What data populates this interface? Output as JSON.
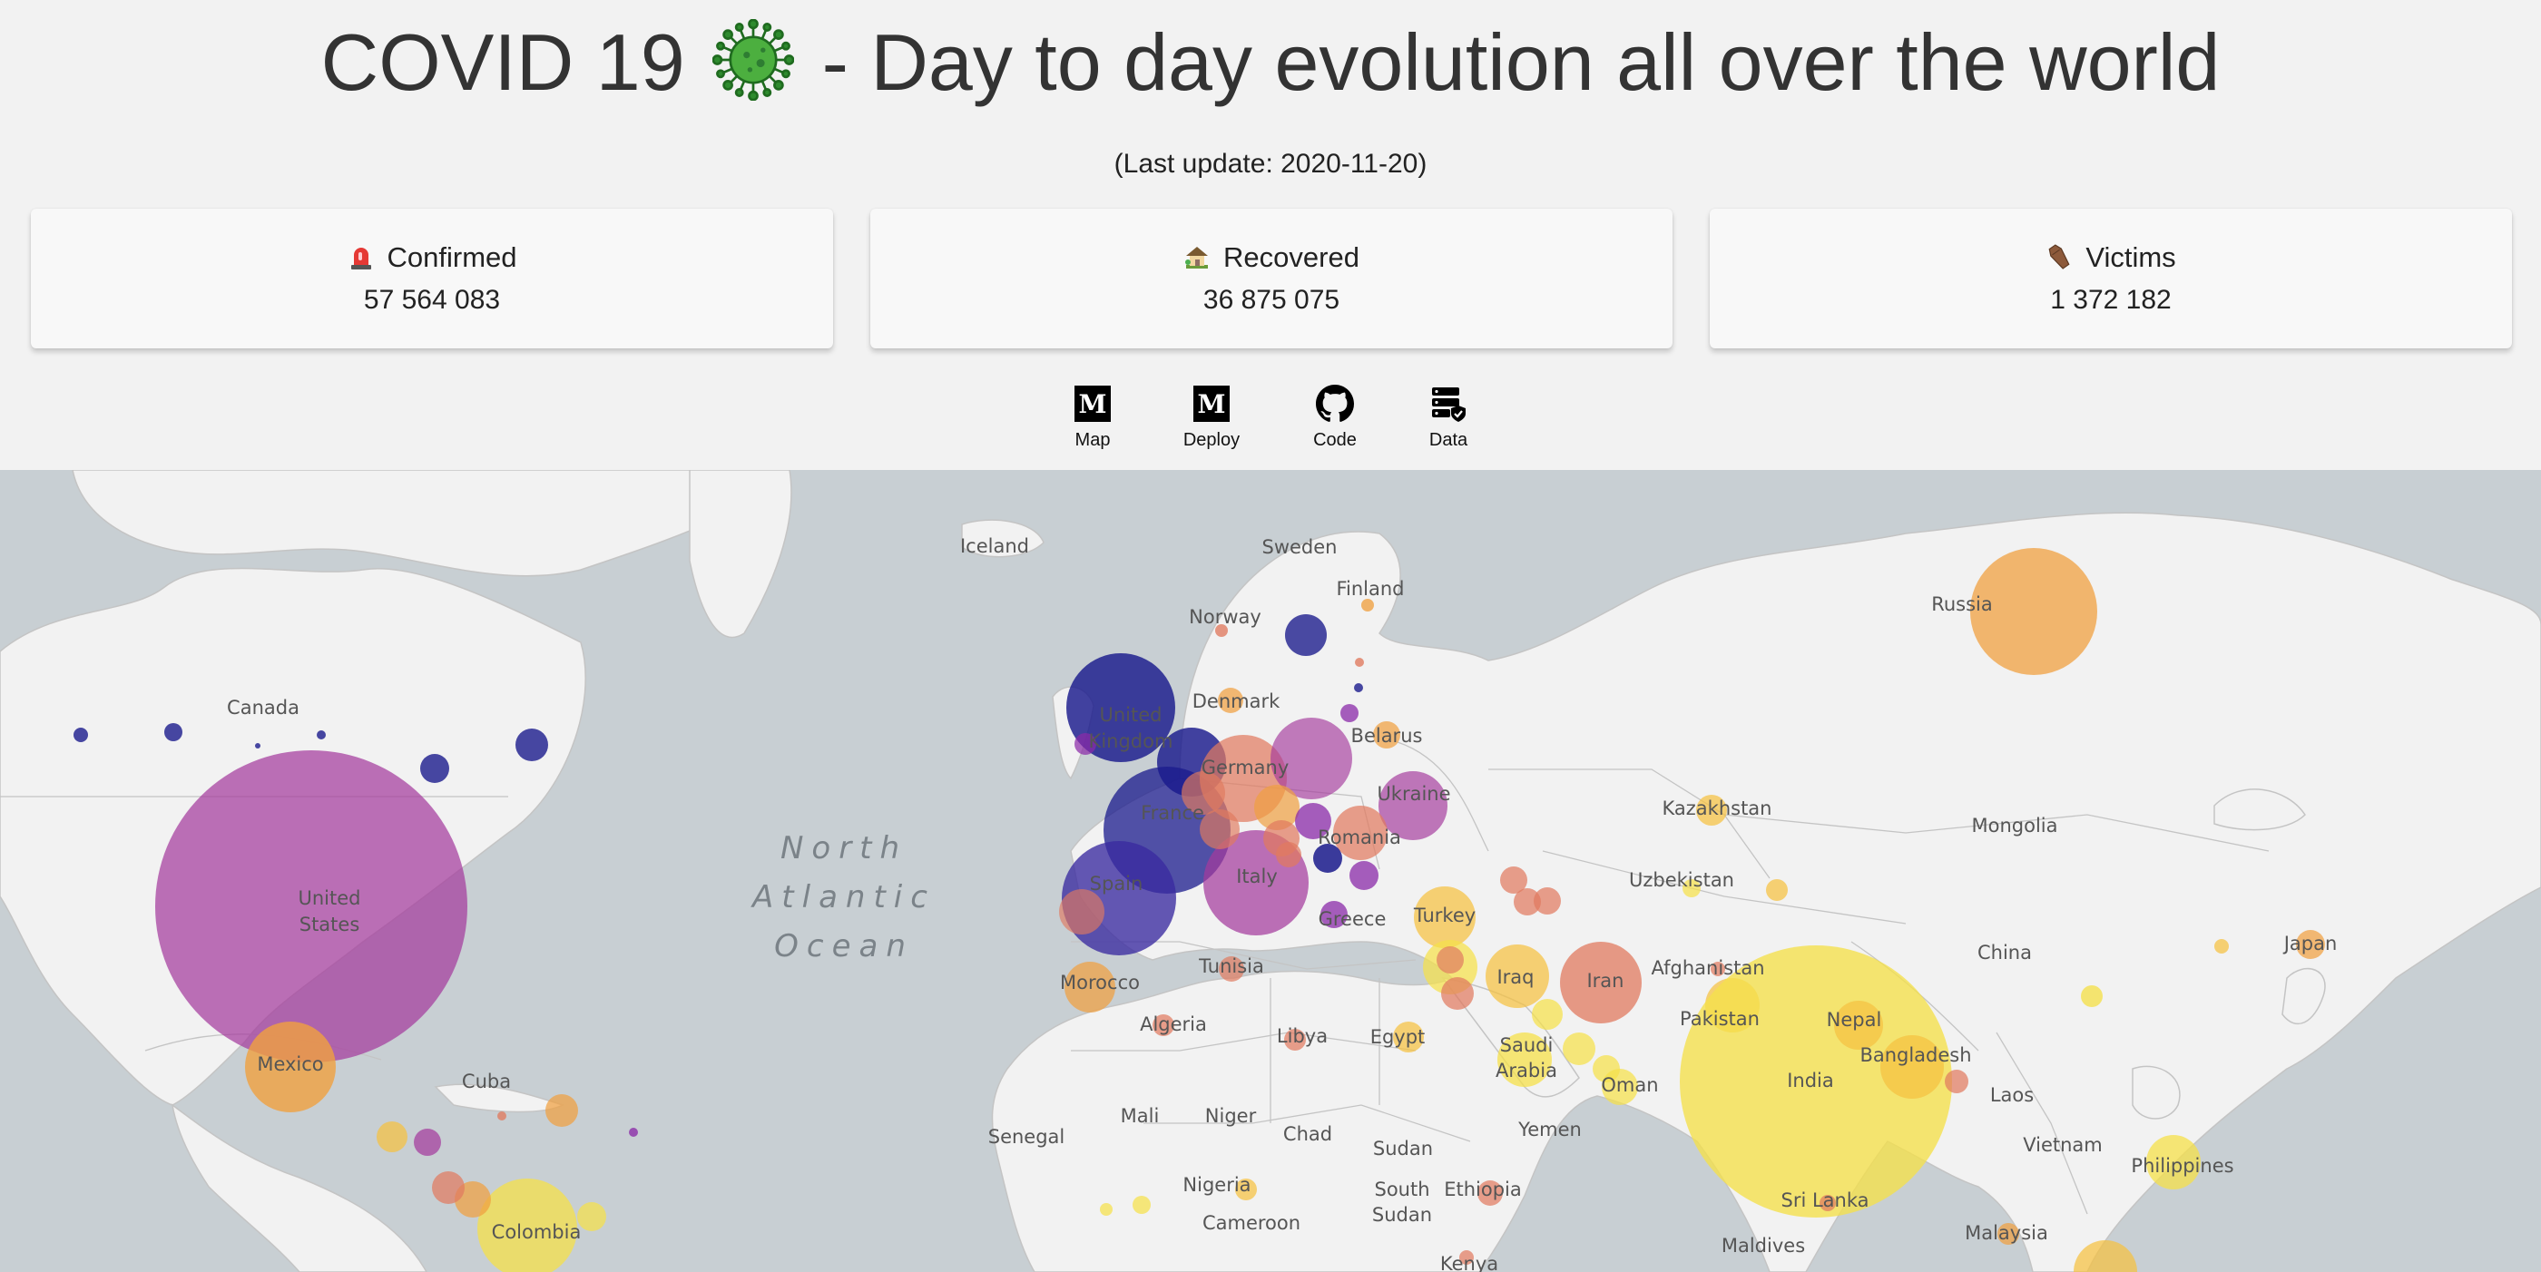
{
  "title": {
    "prefix": "COVID 19",
    "suffix": " - Day to day evolution all over the world",
    "virus_icon": "virus-icon"
  },
  "last_update": "(Last update: 2020-11-20)",
  "stats": [
    {
      "key": "confirmed",
      "icon": "siren-icon",
      "label": "Confirmed",
      "value": "57 564 083"
    },
    {
      "key": "recovered",
      "icon": "house-icon",
      "label": "Recovered",
      "value": "36 875 075"
    },
    {
      "key": "victims",
      "icon": "coffin-icon",
      "label": "Victims",
      "value": "1 372 182"
    }
  ],
  "links": [
    {
      "label": "Map",
      "icon": "medium-icon"
    },
    {
      "label": "Deploy",
      "icon": "medium-icon"
    },
    {
      "label": "Code",
      "icon": "github-icon"
    },
    {
      "label": "Data",
      "icon": "data-server-icon"
    }
  ],
  "map": {
    "ocean_label": [
      "North",
      "Atlantic",
      "Ocean"
    ],
    "country_labels": [
      "Iceland",
      "Sweden",
      "Finland",
      "Norway",
      "Russia",
      "Canada",
      "Denmark",
      "United",
      "Kingdom",
      "Belarus",
      "Germany",
      "Ukraine",
      "France",
      "Romania",
      "Kazakhstan",
      "Mongolia",
      "United",
      "States",
      "Italy",
      "Spain",
      "Uzbekistan",
      "Turkey",
      "Greece",
      "China",
      "Japan",
      "Tunisia",
      "Morocco",
      "Iraq",
      "Iran",
      "Afghanistan",
      "Algeria",
      "Libya",
      "Egypt",
      "Pakistan",
      "Nepal",
      "Mexico",
      "Cuba",
      "Saudi",
      "Arabia",
      "Bangladesh",
      "India",
      "Oman",
      "Laos",
      "Mali",
      "Niger",
      "Chad",
      "Yemen",
      "Senegal",
      "Sudan",
      "Vietnam",
      "Philippines",
      "Nigeria",
      "South",
      "Sudan",
      "Ethiopia",
      "Sri Lanka",
      "Colombia",
      "Cameroon",
      "Maldives",
      "Malaysia",
      "Kenya"
    ],
    "colors": {
      "land": "#f2f2f2",
      "water": "#c8cfd3",
      "border": "#c4c4c4",
      "dark_blue": "#1a1a8c",
      "purple": "#8a2aa8",
      "magenta": "#a43a9c",
      "salmon": "#e07a5f",
      "orange": "#f0a040",
      "yellow": "#f5e04a"
    }
  }
}
